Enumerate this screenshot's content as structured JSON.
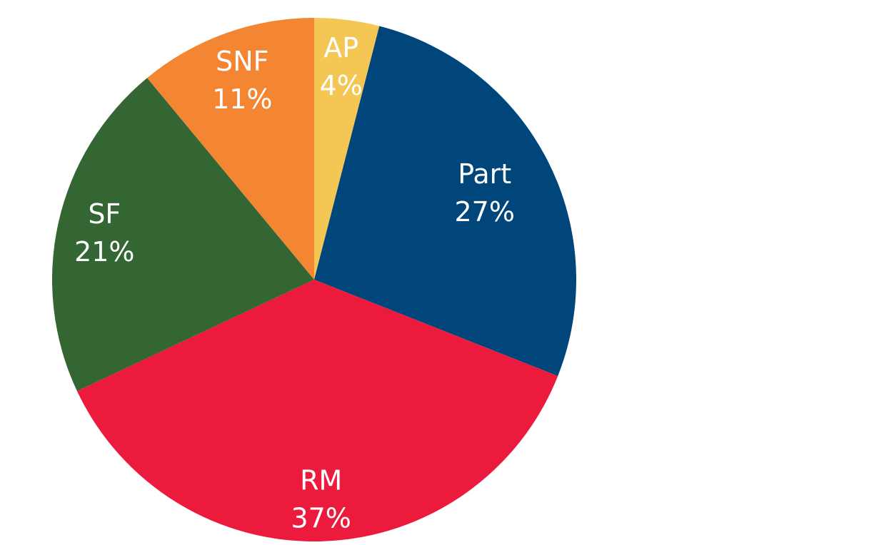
{
  "chart_data": {
    "type": "pie",
    "title": "",
    "start_angle_deg": 0,
    "direction": "clockwise",
    "legend": "none",
    "slices": [
      {
        "label": "AP",
        "value": 4,
        "value_label": "4%",
        "color": "#F4C653"
      },
      {
        "label": "Part",
        "value": 27,
        "value_label": "27%",
        "color": "#00467A"
      },
      {
        "label": "RM",
        "value": 37,
        "value_label": "37%",
        "color": "#EC1A3C"
      },
      {
        "label": "SF",
        "value": 21,
        "value_label": "21%",
        "color": "#336633"
      },
      {
        "label": "SNF",
        "value": 11,
        "value_label": "11%",
        "color": "#F48533"
      }
    ]
  }
}
